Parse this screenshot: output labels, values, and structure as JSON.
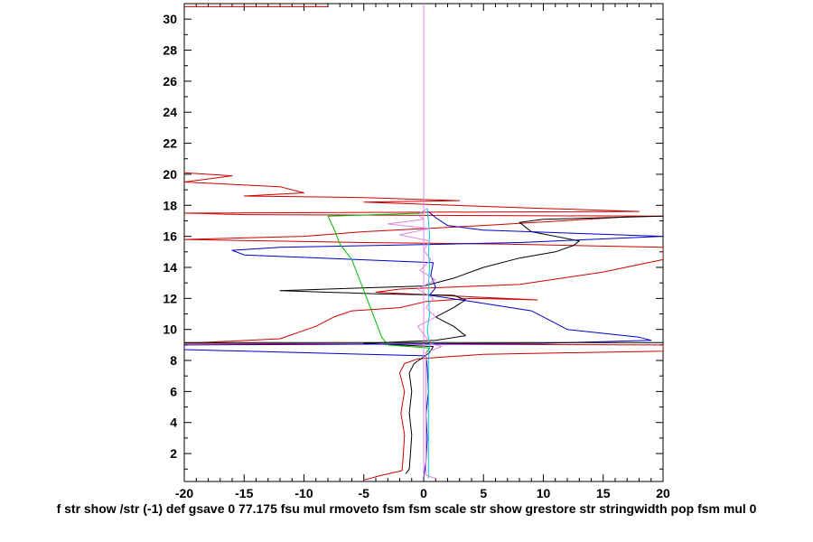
{
  "chart_data": {
    "type": "line",
    "title": "",
    "xlabel": "f str show /str (-1) def gsave 0 77.175 fsu mul rmoveto fsm fsm scale str show grestore str stringwidth pop fsm mul 0",
    "ylabel": "",
    "xlim": [
      -20,
      20
    ],
    "ylim": [
      0.2,
      31
    ],
    "x_ticks": [
      -20,
      -15,
      -10,
      -5,
      0,
      5,
      10,
      15,
      20
    ],
    "y_ticks": [
      2,
      4,
      6,
      8,
      10,
      12,
      14,
      16,
      18,
      20,
      22,
      24,
      26,
      28,
      30
    ],
    "grid": false,
    "series": [
      {
        "color": "#cc0000",
        "points": [
          [
            -5,
            0.3
          ],
          [
            -3.5,
            0.6
          ],
          [
            -1.8,
            0.9
          ],
          [
            -1.7,
            2
          ],
          [
            -1.6,
            3.2
          ],
          [
            -1.9,
            4.6
          ],
          [
            -1.6,
            6
          ],
          [
            -2.0,
            7.2
          ],
          [
            -1.6,
            7.8
          ],
          [
            -0.5,
            8.1
          ],
          [
            5,
            8.4
          ],
          [
            20,
            8.6
          ],
          [
            20,
            9.0
          ],
          [
            -20,
            9.1
          ],
          [
            -12,
            9.4
          ],
          [
            -9,
            10.2
          ],
          [
            -7.5,
            10.8
          ],
          [
            -6,
            11.2
          ],
          [
            -2,
            11.4
          ],
          [
            0.2,
            11.8
          ],
          [
            4,
            12.0
          ],
          [
            9.5,
            11.9
          ],
          [
            4,
            12.1
          ],
          [
            -4,
            12.4
          ],
          [
            -2,
            12.6
          ],
          [
            8,
            12.9
          ],
          [
            15,
            13.7
          ],
          [
            20,
            14.5
          ],
          [
            20,
            15.3
          ],
          [
            7,
            15.5
          ],
          [
            -5,
            15.6
          ],
          [
            -20,
            15.8
          ],
          [
            -10,
            16.0
          ],
          [
            -5,
            16.3
          ],
          [
            5,
            16.7
          ],
          [
            18,
            17.3
          ],
          [
            20,
            17.3
          ],
          [
            -15,
            17.4
          ],
          [
            -20,
            17.5
          ],
          [
            18,
            17.6
          ],
          [
            10,
            17.8
          ],
          [
            -5,
            18.2
          ],
          [
            3,
            18.3
          ],
          [
            -5,
            18.5
          ],
          [
            -15,
            18.6
          ],
          [
            -10,
            18.8
          ],
          [
            -12,
            19.2
          ],
          [
            -20,
            19.5
          ],
          [
            -16,
            19.9
          ],
          [
            -20,
            20.1
          ]
        ]
      },
      {
        "color": "#000000",
        "points": [
          [
            -1.5,
            0.7
          ],
          [
            -1.2,
            1.0
          ],
          [
            -1.1,
            2
          ],
          [
            -1.0,
            3.2
          ],
          [
            -1.2,
            4.6
          ],
          [
            -1.0,
            6
          ],
          [
            -1.2,
            7.2
          ],
          [
            -0.8,
            7.8
          ],
          [
            0.5,
            8.5
          ],
          [
            0.8,
            8.9
          ],
          [
            -5,
            9.1
          ],
          [
            1,
            9.3
          ],
          [
            3.5,
            9.6
          ],
          [
            2.5,
            10.2
          ],
          [
            1.0,
            10.8
          ],
          [
            2.5,
            11.4
          ],
          [
            3.5,
            11.9
          ],
          [
            2.5,
            12.2
          ],
          [
            -4,
            12.3
          ],
          [
            -12,
            12.5
          ],
          [
            0,
            12.8
          ],
          [
            2.5,
            13.3
          ],
          [
            5,
            14.0
          ],
          [
            8,
            14.6
          ],
          [
            11,
            15.0
          ],
          [
            12.5,
            15.4
          ],
          [
            13,
            15.7
          ],
          [
            9,
            16.3
          ],
          [
            8,
            16.9
          ],
          [
            10,
            17.1
          ],
          [
            15,
            17.2
          ],
          [
            20,
            17.3
          ]
        ]
      },
      {
        "color": "#0000cc",
        "points": [
          [
            0,
            0.4
          ],
          [
            0.2,
            1.5
          ],
          [
            0.3,
            3
          ],
          [
            0.2,
            4.5
          ],
          [
            0.4,
            6
          ],
          [
            0.3,
            7.5
          ],
          [
            0.2,
            8.3
          ],
          [
            -20,
            8.7
          ],
          [
            -20,
            9.0
          ],
          [
            10,
            9.1
          ],
          [
            19,
            9.3
          ],
          [
            18,
            9.5
          ],
          [
            12,
            10.0
          ],
          [
            9,
            11.2
          ],
          [
            4,
            11.8
          ],
          [
            0.5,
            12.2
          ],
          [
            1.0,
            12.7
          ],
          [
            0.6,
            13.5
          ],
          [
            0.8,
            14.3
          ],
          [
            -15,
            14.8
          ],
          [
            -16,
            15.1
          ],
          [
            -12,
            15.3
          ],
          [
            2,
            15.5
          ],
          [
            8,
            15.6
          ],
          [
            20,
            16.0
          ],
          [
            5,
            16.4
          ],
          [
            2,
            16.7
          ],
          [
            1,
            17.2
          ],
          [
            0.4,
            17.6
          ]
        ]
      },
      {
        "color": "#00bb00",
        "points": [
          [
            0.2,
            8.5
          ],
          [
            0.5,
            8.8
          ],
          [
            -3,
            9.0
          ],
          [
            -3.5,
            9.5
          ],
          [
            -4,
            10.5
          ],
          [
            -4.5,
            11.5
          ],
          [
            -5,
            12.5
          ],
          [
            -5.5,
            13.5
          ],
          [
            -6,
            14.5
          ],
          [
            -7,
            15.5
          ],
          [
            -7.5,
            16.5
          ],
          [
            -8,
            17.3
          ],
          [
            0,
            17.5
          ]
        ]
      },
      {
        "color": "#00c8e8",
        "points": [
          [
            0.4,
            0.4
          ],
          [
            0.4,
            3
          ],
          [
            0.4,
            6
          ],
          [
            0.4,
            8
          ],
          [
            0.5,
            9
          ],
          [
            0.3,
            10
          ],
          [
            0.5,
            11
          ],
          [
            0.4,
            12
          ],
          [
            0.4,
            13
          ],
          [
            0.5,
            14
          ],
          [
            0.4,
            15
          ],
          [
            0.5,
            16
          ],
          [
            0.4,
            17
          ],
          [
            0.3,
            17.8
          ]
        ]
      },
      {
        "color": "#dd88dd",
        "points": [
          [
            0,
            0.5
          ],
          [
            0,
            31
          ]
        ]
      },
      {
        "color": "#dd88dd",
        "points": [
          [
            1,
            0.4
          ],
          [
            0.2,
            0.6
          ],
          [
            0.2,
            8.5
          ],
          [
            1.5,
            8.9
          ],
          [
            0.5,
            9.1
          ],
          [
            0.2,
            9.5
          ],
          [
            -0.5,
            10.2
          ],
          [
            1.0,
            10.8
          ],
          [
            0.2,
            11.4
          ],
          [
            0.8,
            12.0
          ],
          [
            -0.5,
            12.6
          ],
          [
            1.0,
            13.2
          ],
          [
            -0.3,
            13.8
          ],
          [
            0.6,
            14.5
          ],
          [
            0,
            15.1
          ],
          [
            0.5,
            15.7
          ],
          [
            -2,
            16.1
          ],
          [
            0.5,
            16.5
          ],
          [
            -3,
            16.8
          ],
          [
            0,
            17.1
          ],
          [
            -0.5,
            17.4
          ],
          [
            0.3,
            17.8
          ]
        ]
      },
      {
        "color": "#000000",
        "points": [
          [
            -20,
            9.15
          ],
          [
            20,
            9.15
          ]
        ]
      },
      {
        "color": "#cc0000",
        "points": [
          [
            -20,
            30.8
          ],
          [
            -8,
            30.8
          ]
        ]
      }
    ]
  }
}
